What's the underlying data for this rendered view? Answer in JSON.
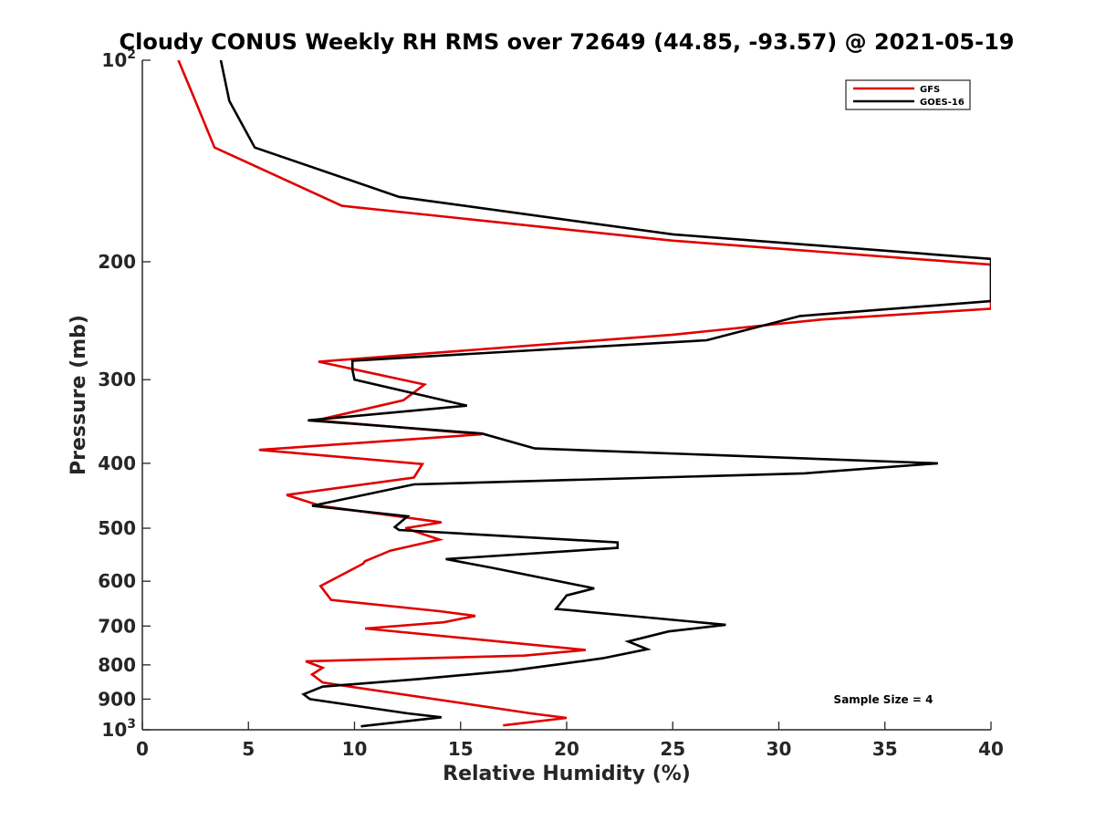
{
  "chart_data": {
    "type": "line",
    "title": "Cloudy CONUS Weekly RH RMS over 72649 (44.85, -93.57) @ 2021-05-19",
    "xlabel": "Relative Humidity (%)",
    "ylabel": "Pressure (mb)",
    "xlim": [
      0,
      40
    ],
    "ylim": [
      100,
      1000
    ],
    "y_scale": "log",
    "y_reversed": true,
    "grid": false,
    "legend_position": "top-right",
    "x_ticks": [
      "0",
      "5",
      "10",
      "15",
      "20",
      "25",
      "30",
      "35",
      "40"
    ],
    "y_ticks": [
      {
        "value": 100,
        "base": "10",
        "exp": "2"
      },
      {
        "value": 200,
        "label": "200"
      },
      {
        "value": 300,
        "label": "300"
      },
      {
        "value": 400,
        "label": "400"
      },
      {
        "value": 500,
        "label": "500"
      },
      {
        "value": 600,
        "label": "600"
      },
      {
        "value": 700,
        "label": "700"
      },
      {
        "value": 800,
        "label": "800"
      },
      {
        "value": 900,
        "label": "900"
      },
      {
        "value": 1000,
        "base": "10",
        "exp": "3"
      }
    ],
    "annotation": "Sample Size = 4",
    "series": [
      {
        "name": "GFS",
        "color": "#e00000",
        "points": [
          [
            1.7,
            100
          ],
          [
            2.5,
            115
          ],
          [
            3.4,
            135
          ],
          [
            9.4,
            165
          ],
          [
            25,
            186
          ],
          [
            40,
            202
          ],
          [
            40,
            235
          ],
          [
            32,
            244
          ],
          [
            25,
            257
          ],
          [
            8.3,
            282
          ],
          [
            13.3,
            305
          ],
          [
            12.3,
            322
          ],
          [
            8.2,
            345
          ],
          [
            16,
            362
          ],
          [
            5.5,
            382
          ],
          [
            13.2,
            401
          ],
          [
            12.8,
            420
          ],
          [
            6.8,
            446
          ],
          [
            8.4,
            463
          ],
          [
            14.1,
            490
          ],
          [
            12.4,
            500
          ],
          [
            14.0,
            520
          ],
          [
            11.7,
            540
          ],
          [
            10.5,
            560
          ],
          [
            10.4,
            565
          ],
          [
            8.4,
            610
          ],
          [
            8.9,
            640
          ],
          [
            14.0,
            665
          ],
          [
            15.7,
            676
          ],
          [
            14.2,
            691
          ],
          [
            10.5,
            706
          ],
          [
            20.9,
            760
          ],
          [
            18.0,
            775
          ],
          [
            7.7,
            790
          ],
          [
            8.5,
            808
          ],
          [
            8.0,
            827
          ],
          [
            8.5,
            850
          ],
          [
            18.3,
            945
          ],
          [
            20.0,
            960
          ],
          [
            17.0,
            985
          ]
        ]
      },
      {
        "name": "GOES-16",
        "color": "#000000",
        "points": [
          [
            3.7,
            100
          ],
          [
            4.1,
            115
          ],
          [
            5.3,
            135
          ],
          [
            12.1,
            160
          ],
          [
            25,
            182
          ],
          [
            40,
            198
          ],
          [
            40,
            229
          ],
          [
            31.0,
            241
          ],
          [
            26.6,
            262
          ],
          [
            9.9,
            281
          ],
          [
            9.9,
            290
          ],
          [
            10.0,
            300
          ],
          [
            15.3,
            328
          ],
          [
            7.8,
            345
          ],
          [
            16.0,
            361
          ],
          [
            18.5,
            380
          ],
          [
            37.5,
            400
          ],
          [
            31.2,
            414
          ],
          [
            12.8,
            430
          ],
          [
            8.0,
            463
          ],
          [
            12.5,
            480
          ],
          [
            11.9,
            498
          ],
          [
            12.1,
            503
          ],
          [
            22.4,
            525
          ],
          [
            22.4,
            535
          ],
          [
            14.3,
            556
          ],
          [
            16.5,
            573
          ],
          [
            21.3,
            615
          ],
          [
            20.0,
            630
          ],
          [
            19.5,
            660
          ],
          [
            27.5,
            697
          ],
          [
            24.8,
            713
          ],
          [
            22.9,
            738
          ],
          [
            23.8,
            758
          ],
          [
            21.7,
            782
          ],
          [
            19.8,
            797
          ],
          [
            17.4,
            816
          ],
          [
            13.0,
            840
          ],
          [
            8.5,
            862
          ],
          [
            7.6,
            885
          ],
          [
            7.9,
            900
          ],
          [
            12.5,
            945
          ],
          [
            14.1,
            958
          ],
          [
            10.3,
            988
          ]
        ]
      }
    ]
  }
}
